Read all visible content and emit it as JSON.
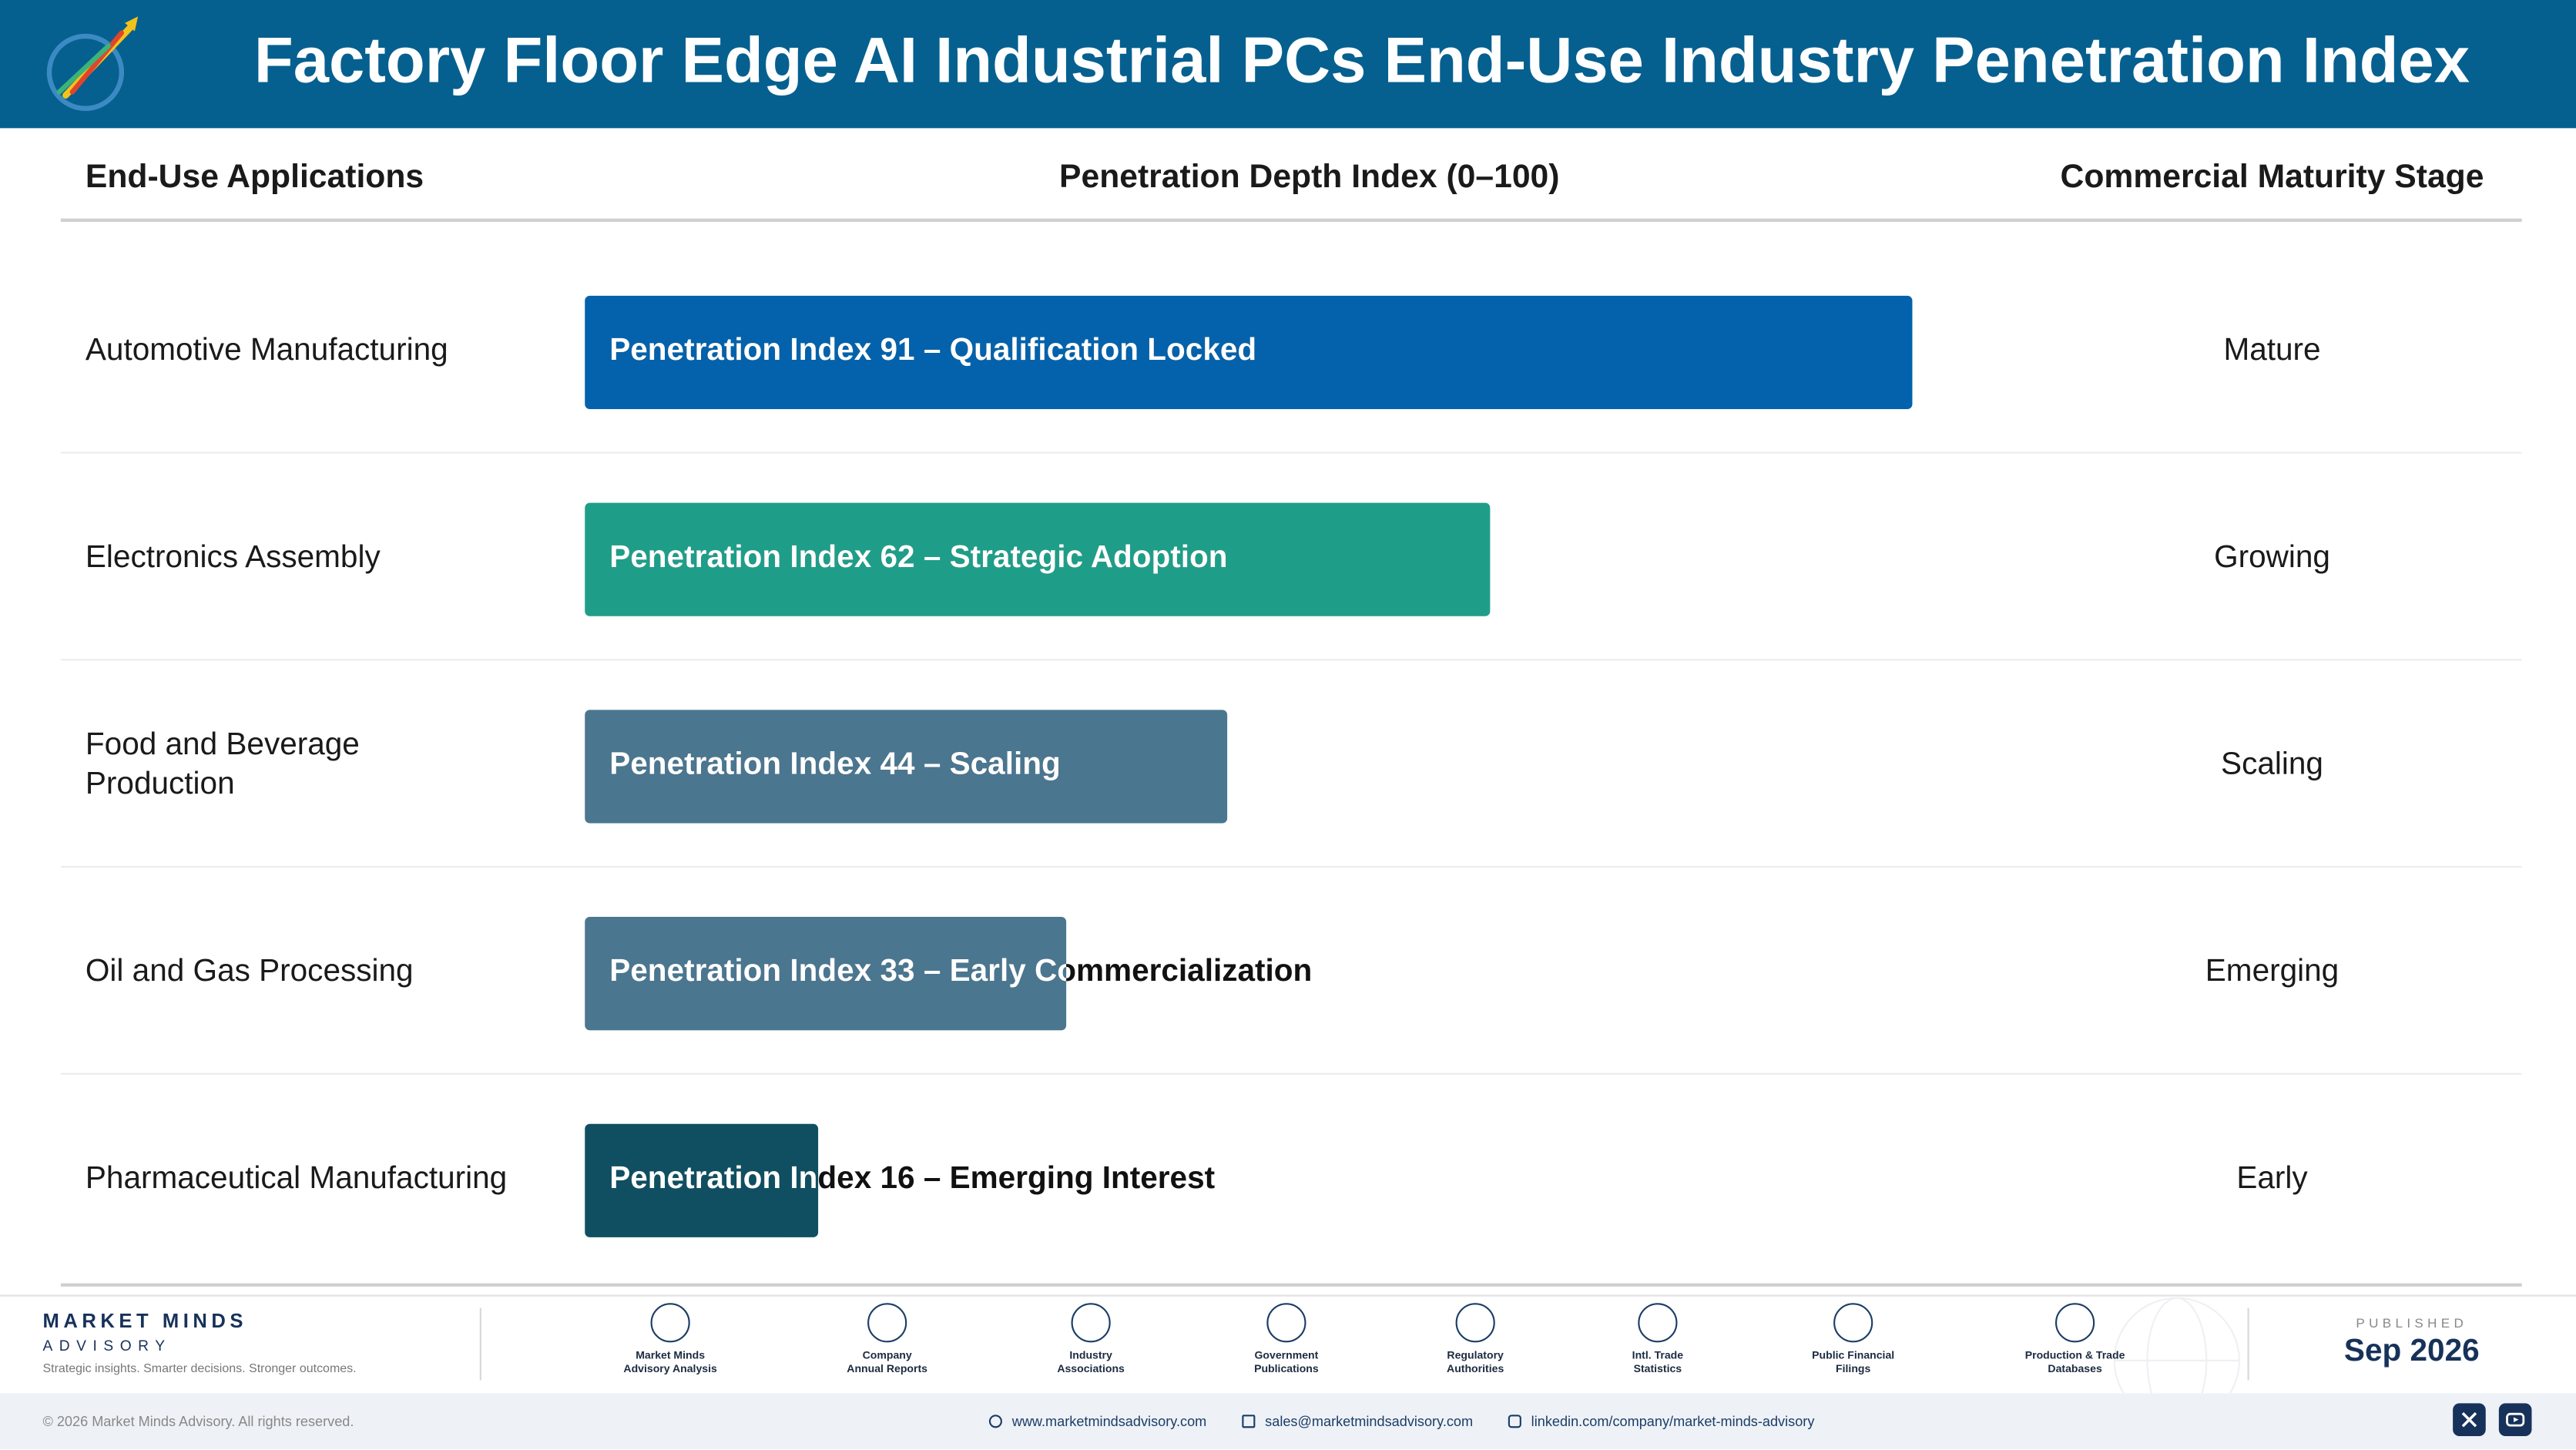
{
  "header": {
    "title": "Factory Floor Edge AI Industrial PCs End-Use Industry Penetration Index"
  },
  "columns": {
    "applications": "End-Use Applications",
    "index": "Penetration Depth Index (0–100)",
    "stage": "Commercial Maturity Stage"
  },
  "colors": {
    "header": "#06608f",
    "qualified": "#0362ab",
    "strategic": "#1e9e88",
    "scaling": "#4a7690",
    "early": "#4a7690",
    "emerging": "#0f4f61"
  },
  "chart_data": {
    "type": "bar",
    "orientation": "horizontal",
    "title": "Factory Floor Edge AI Industrial PCs End-Use Industry Penetration Index",
    "xlabel": "Penetration Depth Index (0–100)",
    "xlim": [
      0,
      100
    ],
    "categories": [
      "Automotive Manufacturing",
      "Electronics Assembly",
      "Food and Beverage Production",
      "Oil and Gas Processing",
      "Pharmaceutical Manufacturing"
    ],
    "values": [
      91,
      62,
      44,
      33,
      16
    ],
    "rows": [
      {
        "application": "Automotive Manufacturing",
        "value": 91,
        "label": "Penetration Index 91 – Qualification Locked",
        "stage": "Mature",
        "color": "#0362ab"
      },
      {
        "application": "Electronics Assembly",
        "value": 62,
        "label": "Penetration Index 62 – Strategic Adoption",
        "stage": "Growing",
        "color": "#1e9e88"
      },
      {
        "application": "Food and Beverage Production",
        "value": 44,
        "label": "Penetration Index 44 – Scaling",
        "stage": "Scaling",
        "color": "#4a7690"
      },
      {
        "application": "Oil and Gas Processing",
        "value": 33,
        "label": "Penetration Index 33 – Early Commercialization",
        "stage": "Emerging",
        "color": "#4a7690"
      },
      {
        "application": "Pharmaceutical Manufacturing",
        "value": 16,
        "label": "Penetration Index 16 – Emerging Interest",
        "stage": "Early",
        "color": "#0f4f61"
      }
    ]
  },
  "footer": {
    "brand_name": "MARKET MINDS",
    "brand_sub": "ADVISORY",
    "tagline": "Strategic insights. Smarter decisions. Stronger outcomes.",
    "sources": [
      {
        "l1": "Market Minds",
        "l2": "Advisory Analysis",
        "icon": "chart-icon"
      },
      {
        "l1": "Company",
        "l2": "Annual Reports",
        "icon": "document-icon"
      },
      {
        "l1": "Industry",
        "l2": "Associations",
        "icon": "network-icon"
      },
      {
        "l1": "Government",
        "l2": "Publications",
        "icon": "building-icon"
      },
      {
        "l1": "Regulatory",
        "l2": "Authorities",
        "icon": "shield-icon"
      },
      {
        "l1": "Intl. Trade",
        "l2": "Statistics",
        "icon": "globe-icon"
      },
      {
        "l1": "Public Financial",
        "l2": "Filings",
        "icon": "dollar-icon"
      },
      {
        "l1": "Production & Trade",
        "l2": "Databases",
        "icon": "database-icon"
      }
    ],
    "published_label": "PUBLISHED",
    "published_date": "Sep 2026",
    "copyright": "© 2026 Market Minds Advisory. All rights reserved.",
    "website": "www.marketmindsadvisory.com",
    "email": "sales@marketmindsadvisory.com",
    "linkedin": "linkedin.com/company/market-minds-advisory"
  }
}
